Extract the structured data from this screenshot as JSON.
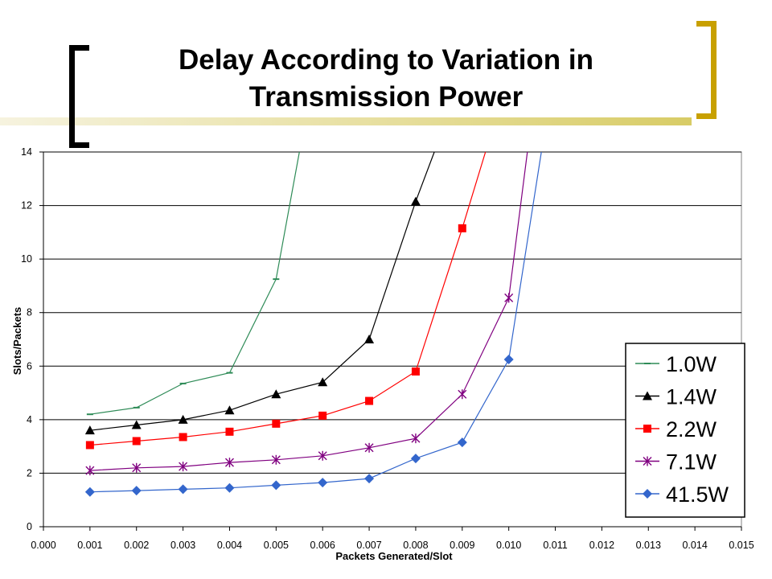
{
  "slide": {
    "title_line1": "Delay According to Variation in",
    "title_line2": "Transmission Power"
  },
  "chart_data": {
    "type": "line",
    "xlabel": "Packets Generated/Slot",
    "ylabel": "Slots/Packets",
    "xlim": [
      0.0,
      0.015
    ],
    "ylim": [
      0,
      14
    ],
    "x_ticks": [
      "0.000",
      "0.001",
      "0.002",
      "0.003",
      "0.004",
      "0.005",
      "0.006",
      "0.007",
      "0.008",
      "0.009",
      "0.010",
      "0.011",
      "0.012",
      "0.013",
      "0.014",
      "0.015"
    ],
    "y_ticks": [
      "0",
      "2",
      "4",
      "6",
      "8",
      "10",
      "12",
      "14"
    ],
    "grid": "horizontal",
    "legend_position": "right",
    "series": [
      {
        "name": "1.0W",
        "color": "#2e8b57",
        "marker": "dash",
        "points": [
          [
            0.001,
            4.2
          ],
          [
            0.002,
            4.45
          ],
          [
            0.003,
            5.35
          ],
          [
            0.004,
            5.75
          ],
          [
            0.005,
            9.25
          ],
          [
            0.0055,
            14
          ]
        ]
      },
      {
        "name": "1.4W",
        "color": "#000000",
        "marker": "triangle",
        "points": [
          [
            0.001,
            3.6
          ],
          [
            0.002,
            3.8
          ],
          [
            0.003,
            4.0
          ],
          [
            0.004,
            4.35
          ],
          [
            0.005,
            4.95
          ],
          [
            0.006,
            5.4
          ],
          [
            0.007,
            7.0
          ],
          [
            0.008,
            12.15
          ],
          [
            0.0084,
            14
          ]
        ]
      },
      {
        "name": "2.2W",
        "color": "#ff0000",
        "marker": "square",
        "points": [
          [
            0.001,
            3.05
          ],
          [
            0.002,
            3.2
          ],
          [
            0.003,
            3.35
          ],
          [
            0.004,
            3.55
          ],
          [
            0.005,
            3.85
          ],
          [
            0.006,
            4.15
          ],
          [
            0.007,
            4.7
          ],
          [
            0.008,
            5.8
          ],
          [
            0.009,
            11.15
          ],
          [
            0.0095,
            14
          ]
        ]
      },
      {
        "name": "7.1W",
        "color": "#800080",
        "marker": "star",
        "points": [
          [
            0.001,
            2.1
          ],
          [
            0.002,
            2.2
          ],
          [
            0.003,
            2.25
          ],
          [
            0.004,
            2.4
          ],
          [
            0.005,
            2.5
          ],
          [
            0.006,
            2.65
          ],
          [
            0.007,
            2.95
          ],
          [
            0.008,
            3.3
          ],
          [
            0.009,
            4.95
          ],
          [
            0.01,
            8.55
          ],
          [
            0.0104,
            14
          ]
        ]
      },
      {
        "name": "41.5W",
        "color": "#3366cc",
        "marker": "diamond",
        "points": [
          [
            0.001,
            1.3
          ],
          [
            0.002,
            1.35
          ],
          [
            0.003,
            1.4
          ],
          [
            0.004,
            1.45
          ],
          [
            0.005,
            1.55
          ],
          [
            0.006,
            1.65
          ],
          [
            0.007,
            1.8
          ],
          [
            0.008,
            2.55
          ],
          [
            0.009,
            3.15
          ],
          [
            0.01,
            6.25
          ],
          [
            0.0107,
            14
          ]
        ]
      }
    ]
  }
}
